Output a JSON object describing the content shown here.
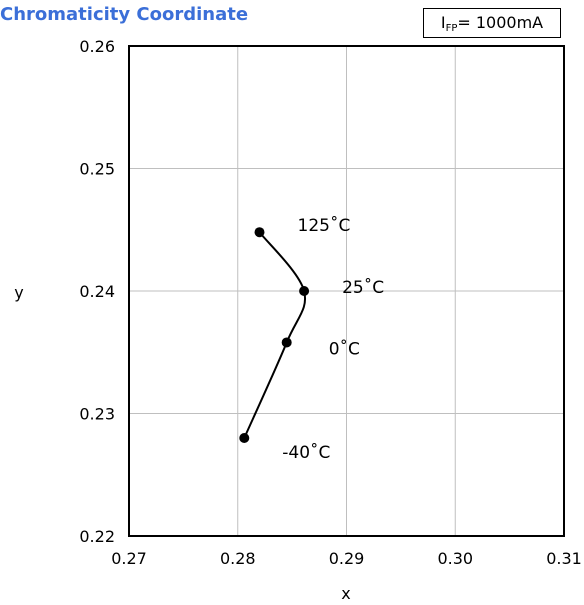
{
  "chart_data": {
    "type": "line",
    "title": "Chromaticity Coordinate",
    "condition": {
      "main": "I",
      "sub": "FP",
      "rest": "= 1000mA"
    },
    "xlabel": "x",
    "ylabel": "y",
    "xlim": [
      0.27,
      0.31
    ],
    "ylim": [
      0.22,
      0.26
    ],
    "xticks": [
      "0.27",
      "0.28",
      "0.29",
      "0.30",
      "0.31"
    ],
    "yticks": [
      "0.22",
      "0.23",
      "0.24",
      "0.25",
      "0.26"
    ],
    "grid": true,
    "series": [
      {
        "points": [
          {
            "x": 0.2806,
            "y": 0.228,
            "label": "-40˚C"
          },
          {
            "x": 0.2845,
            "y": 0.2358,
            "label": "0˚C"
          },
          {
            "x": 0.2861,
            "y": 0.24,
            "label": "25˚C"
          },
          {
            "x": 0.282,
            "y": 0.2448,
            "label": "125˚C"
          }
        ]
      }
    ],
    "colors": {
      "title": "#3b6fd8",
      "line": "#000000",
      "grid": "#bfbfbf"
    }
  }
}
